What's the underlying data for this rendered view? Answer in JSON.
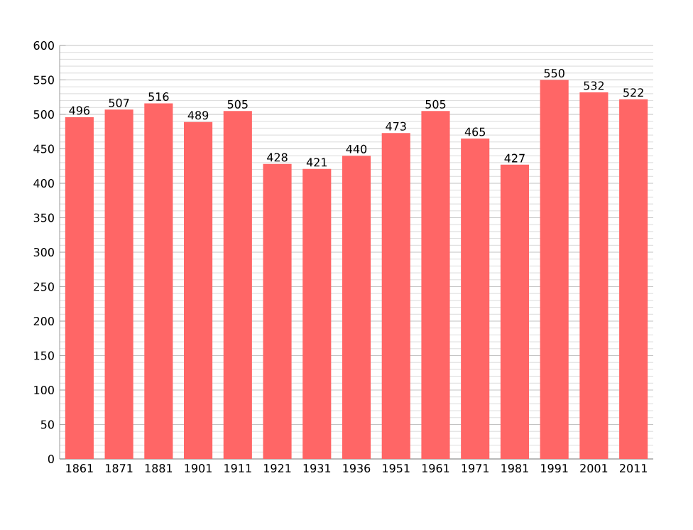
{
  "chart_data": {
    "type": "bar",
    "categories": [
      "1861",
      "1871",
      "1881",
      "1901",
      "1911",
      "1921",
      "1931",
      "1936",
      "1951",
      "1961",
      "1971",
      "1981",
      "1991",
      "2001",
      "2011"
    ],
    "values": [
      496,
      507,
      516,
      489,
      505,
      428,
      421,
      440,
      473,
      505,
      465,
      427,
      550,
      532,
      522
    ],
    "color": "#ff6666",
    "ylim": [
      0,
      600
    ],
    "yticks": [
      0,
      50,
      100,
      150,
      200,
      250,
      300,
      350,
      400,
      450,
      500,
      550,
      600
    ],
    "grid": "y",
    "data_labels": true
  }
}
